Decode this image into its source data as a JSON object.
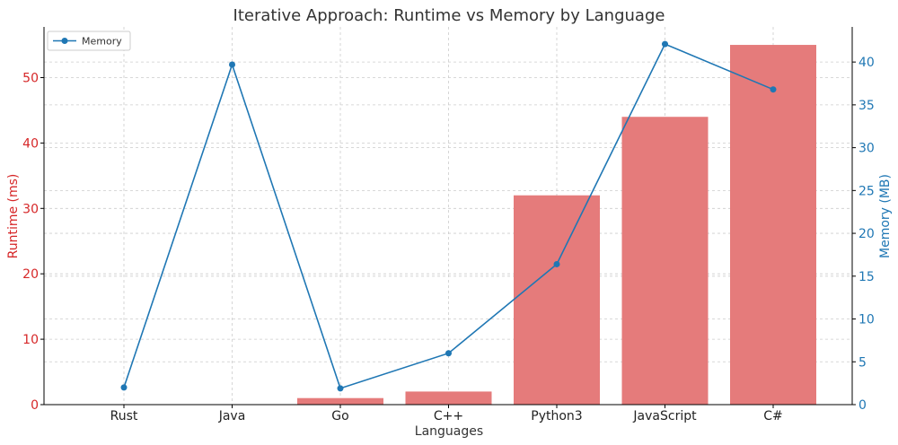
{
  "chart_data": {
    "type": "bar+line",
    "title": "Iterative Approach: Runtime vs Memory by Language",
    "xlabel": "Languages",
    "categories": [
      "Rust",
      "Java",
      "Go",
      "C++",
      "Python3",
      "JavaScript",
      "C#"
    ],
    "left_axis": {
      "label": "Runtime (ms)",
      "ylim": [
        0,
        57.75
      ],
      "ticks": [
        0,
        10,
        20,
        30,
        40,
        50
      ],
      "color": "#d62728"
    },
    "right_axis": {
      "label": "Memory (MB)",
      "ylim": [
        0,
        44.1
      ],
      "ticks": [
        0,
        5,
        10,
        15,
        20,
        25,
        30,
        35,
        40
      ],
      "color": "#1f77b4"
    },
    "series": [
      {
        "kind": "bar",
        "axis": "left",
        "values": [
          0,
          0,
          1,
          2,
          32,
          44,
          55
        ],
        "color": "#e57b7b"
      },
      {
        "kind": "line",
        "axis": "right",
        "name": "Memory",
        "values": [
          2.0,
          39.7,
          1.9,
          6.0,
          16.4,
          42.1,
          36.8
        ],
        "color": "#1f77b4"
      }
    ],
    "grid": true,
    "legend": "top-left"
  }
}
